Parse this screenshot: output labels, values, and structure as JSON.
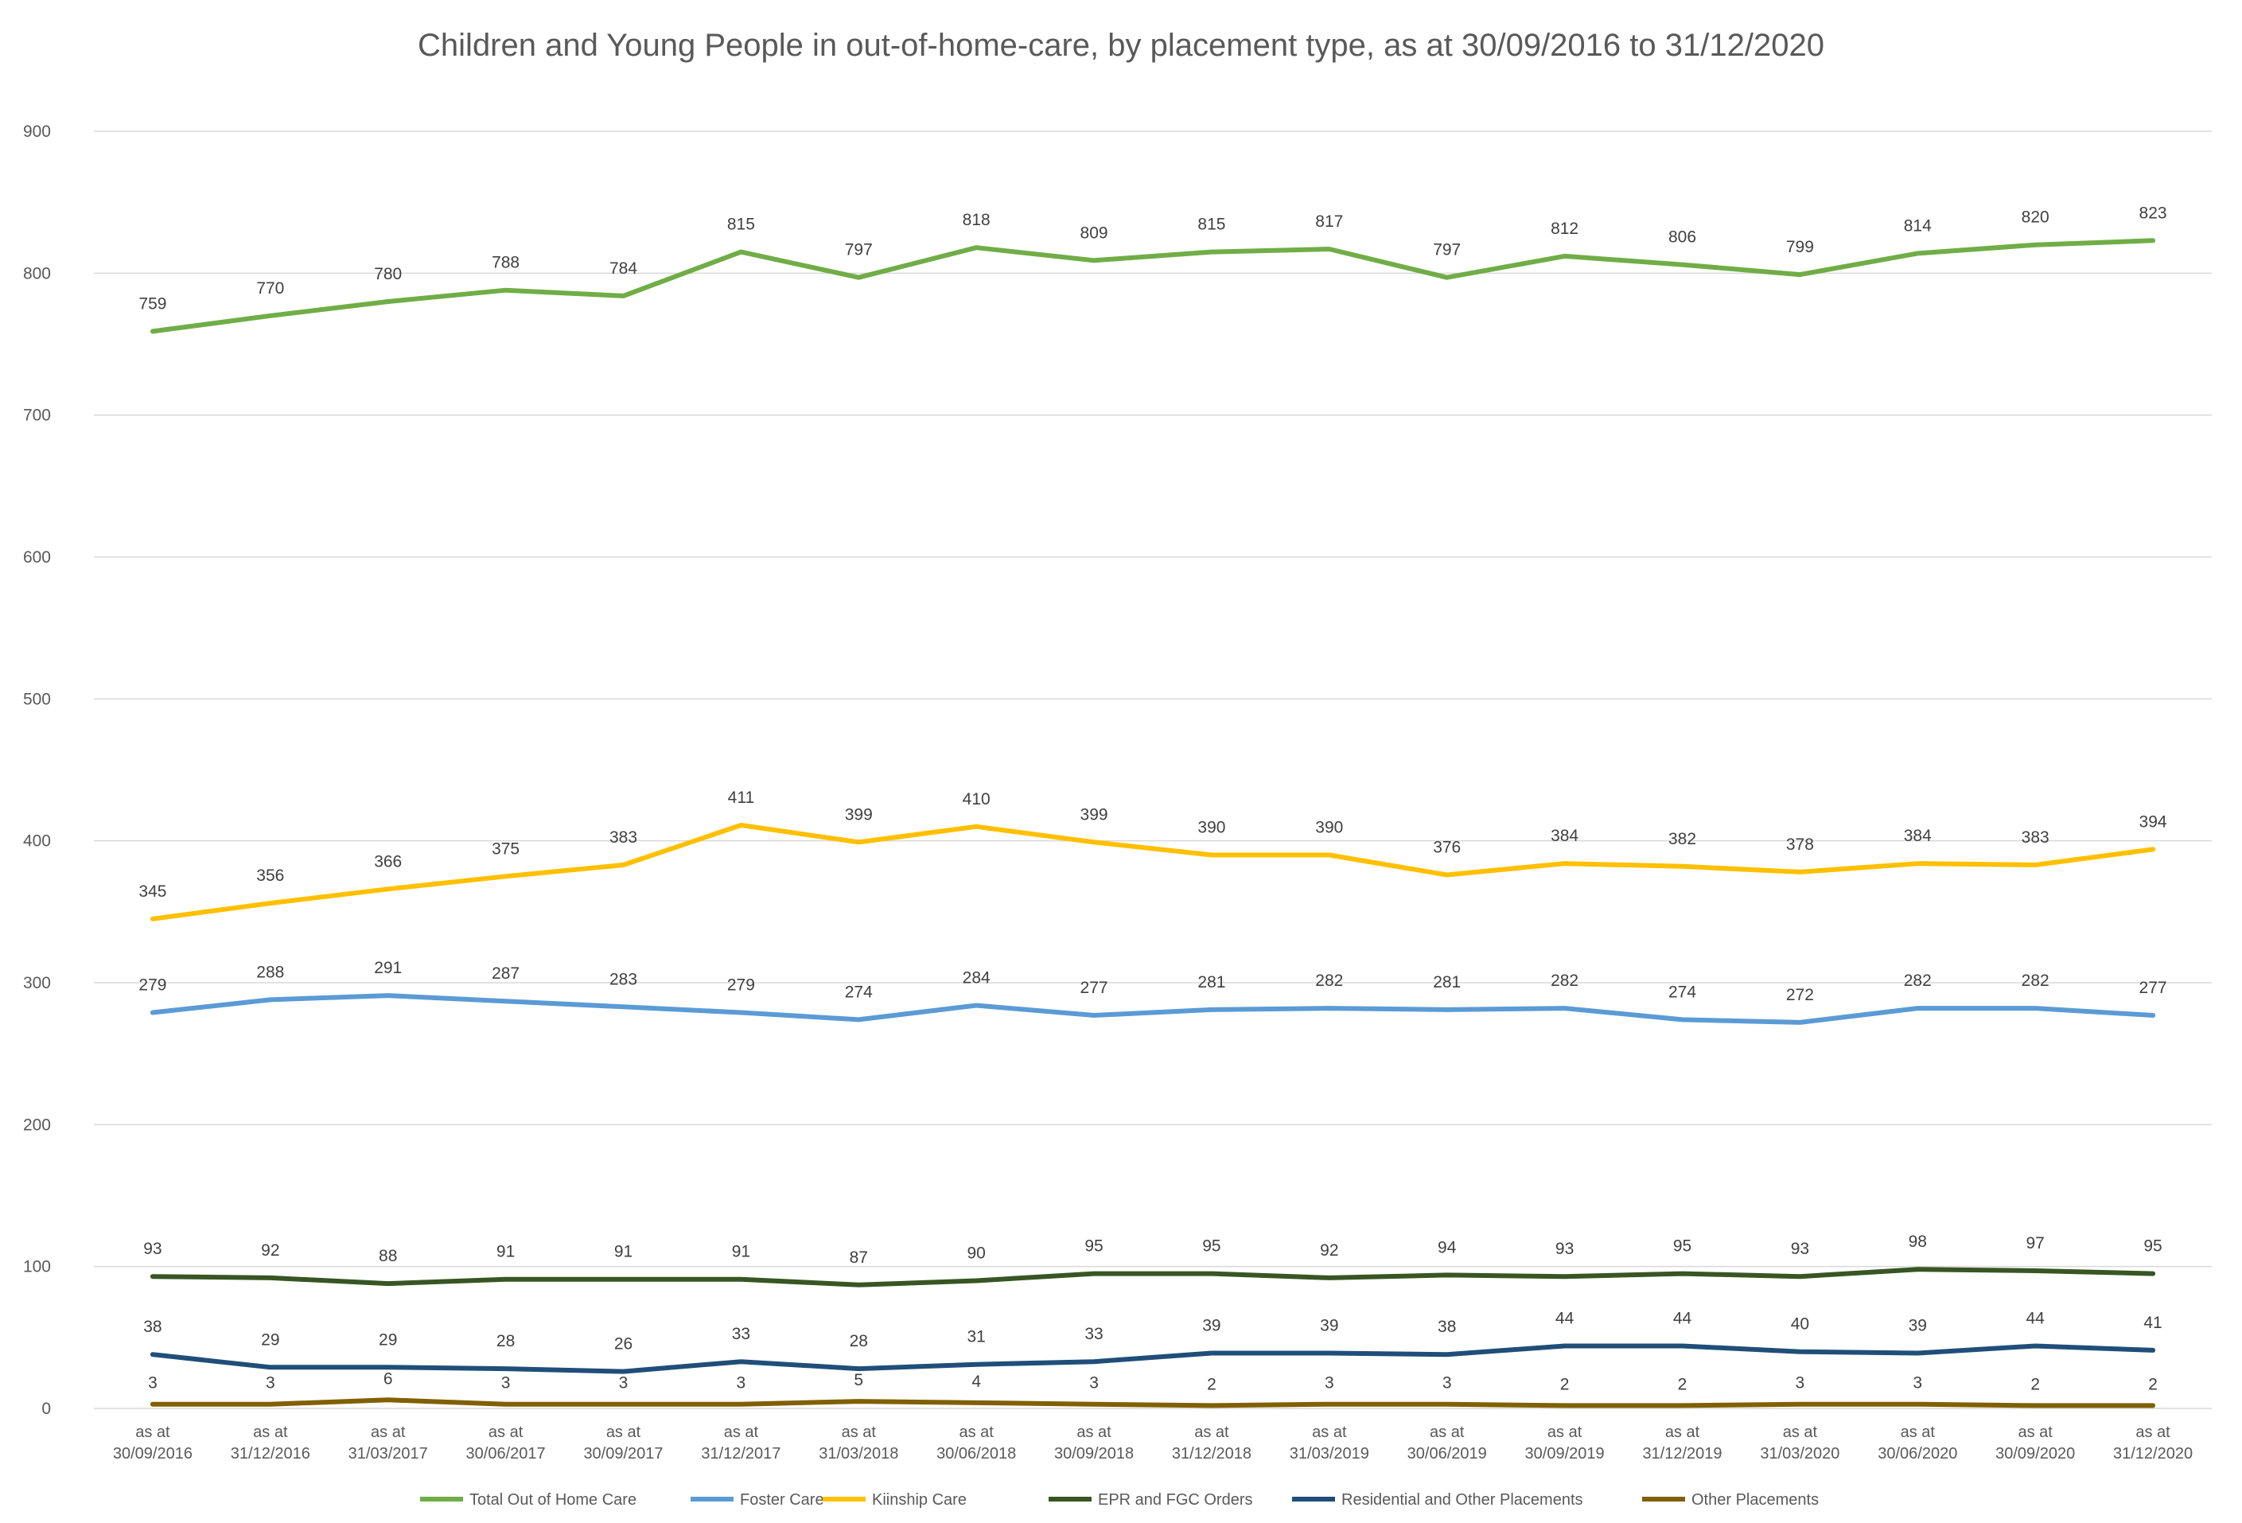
{
  "chart_data": {
    "type": "line",
    "title": "Children and Young People in out-of-home-care, by placement type, as at 30/09/2016 to 31/12/2020",
    "xlabel": "",
    "ylabel": "",
    "ylim": [
      0,
      900
    ],
    "yticks": [
      0,
      100,
      200,
      300,
      400,
      500,
      600,
      700,
      800,
      900
    ],
    "grid": true,
    "legend_position": "bottom",
    "categories": [
      [
        "as at",
        "30/09/2016"
      ],
      [
        "as at",
        "31/12/2016"
      ],
      [
        "as at",
        "31/03/2017"
      ],
      [
        "as at",
        "30/06/2017"
      ],
      [
        "as at",
        "30/09/2017"
      ],
      [
        "as at",
        "31/12/2017"
      ],
      [
        "as at",
        "31/03/2018"
      ],
      [
        "as at",
        "30/06/2018"
      ],
      [
        "as at",
        "30/09/2018"
      ],
      [
        "as at",
        "31/12/2018"
      ],
      [
        "as at",
        "31/03/2019"
      ],
      [
        "as at",
        "30/06/2019"
      ],
      [
        "as at",
        "30/09/2019"
      ],
      [
        "as at",
        "31/12/2019"
      ],
      [
        "as at",
        "31/03/2020"
      ],
      [
        "as at",
        "30/06/2020"
      ],
      [
        "as at",
        "30/09/2020"
      ],
      [
        "as at",
        "31/12/2020"
      ]
    ],
    "series": [
      {
        "name": "Total Out of Home Care",
        "color": "#70ad47",
        "values": [
          759,
          770,
          780,
          788,
          784,
          815,
          797,
          818,
          809,
          815,
          817,
          797,
          812,
          806,
          799,
          814,
          820,
          823
        ]
      },
      {
        "name": "Foster Care",
        "color": "#5b9bd5",
        "values": [
          279,
          288,
          291,
          287,
          283,
          279,
          274,
          284,
          277,
          281,
          282,
          281,
          282,
          274,
          272,
          282,
          282,
          277
        ]
      },
      {
        "name": "Kiinship Care",
        "color": "#ffc000",
        "values": [
          345,
          356,
          366,
          375,
          383,
          411,
          399,
          410,
          399,
          390,
          390,
          376,
          384,
          382,
          378,
          384,
          383,
          394
        ]
      },
      {
        "name": "EPR and FGC Orders",
        "color": "#375623",
        "values": [
          93,
          92,
          88,
          91,
          91,
          91,
          87,
          90,
          95,
          95,
          92,
          94,
          93,
          95,
          93,
          98,
          97,
          95
        ]
      },
      {
        "name": "Residential and Other Placements",
        "color": "#1f4e79",
        "values": [
          38,
          29,
          29,
          28,
          26,
          33,
          28,
          31,
          33,
          39,
          39,
          38,
          44,
          44,
          40,
          39,
          44,
          41
        ]
      },
      {
        "name": "Other Placements",
        "color": "#806000",
        "values": [
          3,
          3,
          6,
          3,
          3,
          3,
          5,
          4,
          3,
          2,
          3,
          3,
          2,
          2,
          3,
          3,
          2,
          2
        ]
      }
    ]
  }
}
